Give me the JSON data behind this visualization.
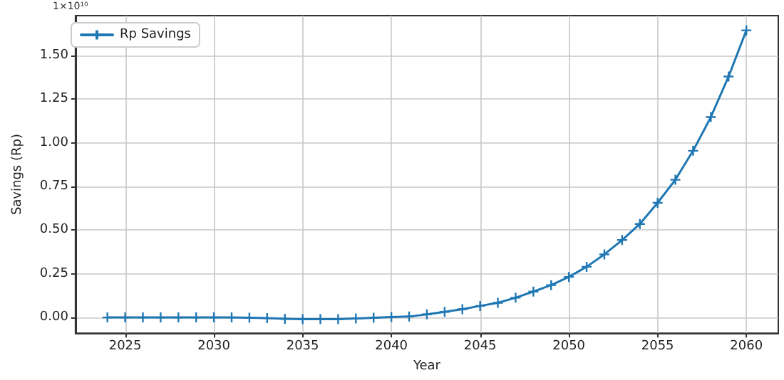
{
  "chart_data": {
    "type": "line",
    "xlabel": "Year",
    "ylabel": "Savings (Rp)",
    "annotations": [
      "1×10¹⁰"
    ],
    "x": [
      2024,
      2025,
      2026,
      2027,
      2028,
      2029,
      2030,
      2031,
      2032,
      2033,
      2034,
      2035,
      2036,
      2037,
      2038,
      2039,
      2040,
      2041,
      2042,
      2043,
      2044,
      2045,
      2046,
      2047,
      2048,
      2049,
      2050,
      2051,
      2052,
      2053,
      2054,
      2055,
      2056,
      2057,
      2058,
      2059,
      2060
    ],
    "series": [
      {
        "name": "Rp Savings",
        "color": "#1f77b4",
        "values": [
          0,
          0,
          0,
          0,
          0,
          0,
          0,
          0,
          -0.002,
          -0.004,
          -0.008,
          -0.01,
          -0.01,
          -0.01,
          -0.006,
          -0.002,
          0.002,
          0.005,
          0.018,
          0.032,
          0.047,
          0.066,
          0.084,
          0.113,
          0.148,
          0.185,
          0.232,
          0.29,
          0.361,
          0.443,
          0.535,
          0.656,
          0.788,
          0.954,
          1.147,
          1.379,
          1.643
        ]
      }
    ],
    "xlim": [
      2022.2,
      2061.8
    ],
    "xticks": [
      2025,
      2030,
      2035,
      2040,
      2045,
      2050,
      2055,
      2060
    ],
    "ylim": [
      -0.09,
      1.727
    ],
    "yticks": [
      {
        "value": 0,
        "label": "0.00"
      },
      {
        "value": 0.25,
        "label": "0.25"
      },
      {
        "value": 0.5,
        "label": "0.50"
      },
      {
        "value": 0.75,
        "label": "0.75"
      },
      {
        "value": 1,
        "label": "1.00"
      },
      {
        "value": 1.25,
        "label": "1.25"
      },
      {
        "value": 1.5,
        "label": "1.50"
      }
    ],
    "grid": true,
    "legend": "top left",
    "marker": "cross",
    "line_style": "solid"
  }
}
